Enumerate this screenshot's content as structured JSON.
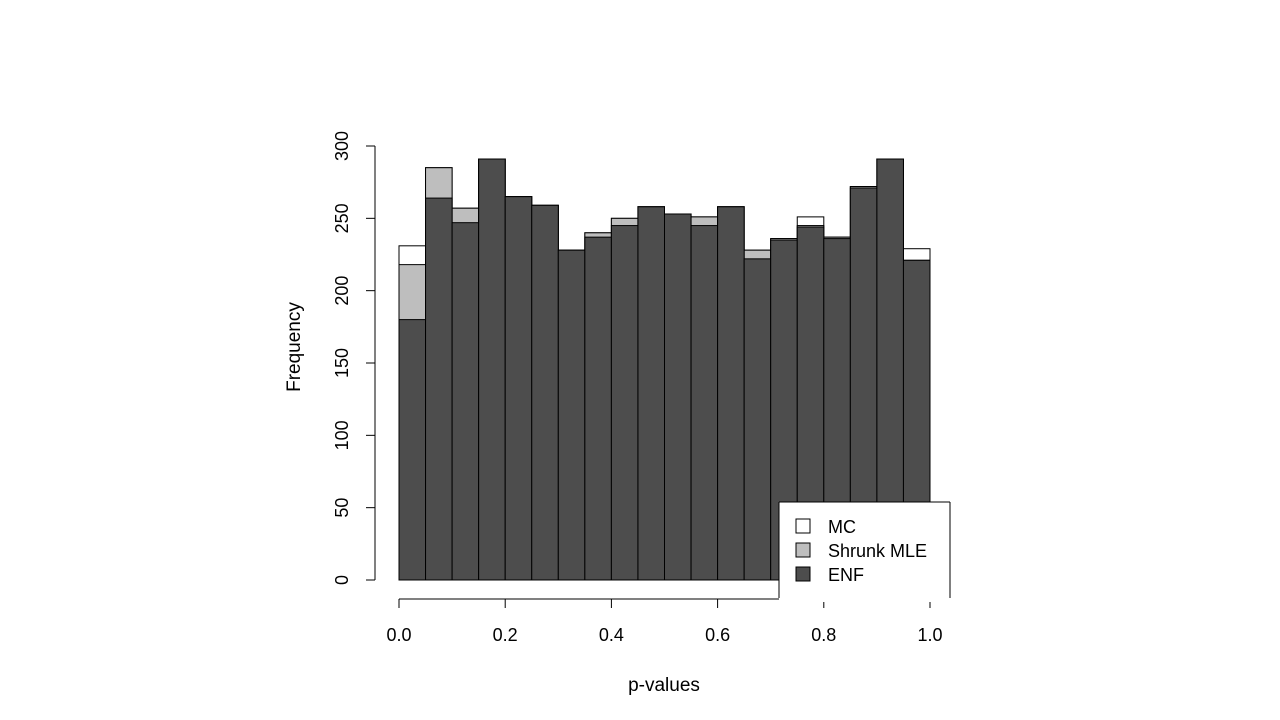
{
  "chart_data": {
    "type": "bar",
    "xlabel": "p-values",
    "ylabel": "Frequency",
    "xlim": [
      0,
      1
    ],
    "ylim": [
      0,
      300
    ],
    "x_ticks": [
      "0.0",
      "0.2",
      "0.4",
      "0.6",
      "0.8",
      "1.0"
    ],
    "y_ticks": [
      "0",
      "50",
      "100",
      "150",
      "200",
      "250",
      "300"
    ],
    "bin_width": 0.05,
    "bins": [
      "0.00-0.05",
      "0.05-0.10",
      "0.10-0.15",
      "0.15-0.20",
      "0.20-0.25",
      "0.25-0.30",
      "0.30-0.35",
      "0.35-0.40",
      "0.40-0.45",
      "0.45-0.50",
      "0.50-0.55",
      "0.55-0.60",
      "0.60-0.65",
      "0.65-0.70",
      "0.70-0.75",
      "0.75-0.80",
      "0.80-0.85",
      "0.85-0.90",
      "0.90-0.95",
      "0.95-1.00"
    ],
    "series": [
      {
        "name": "MC",
        "color": "#ffffff",
        "values": [
          231,
          285,
          257,
          291,
          265,
          259,
          228,
          240,
          250,
          258,
          253,
          251,
          258,
          228,
          236,
          251,
          237,
          272,
          291,
          229
        ]
      },
      {
        "name": "Shrunk MLE",
        "color": "#bebebe",
        "values": [
          218,
          285,
          257,
          291,
          265,
          259,
          228,
          240,
          250,
          258,
          253,
          251,
          258,
          228,
          236,
          245,
          237,
          272,
          291,
          221
        ]
      },
      {
        "name": "ENF",
        "color": "#4d4d4d",
        "values": [
          180,
          264,
          247,
          291,
          265,
          259,
          228,
          237,
          245,
          258,
          253,
          245,
          258,
          222,
          235,
          244,
          236,
          271,
          291,
          221
        ]
      }
    ],
    "legend_position": "bottom-right",
    "grid": false
  }
}
